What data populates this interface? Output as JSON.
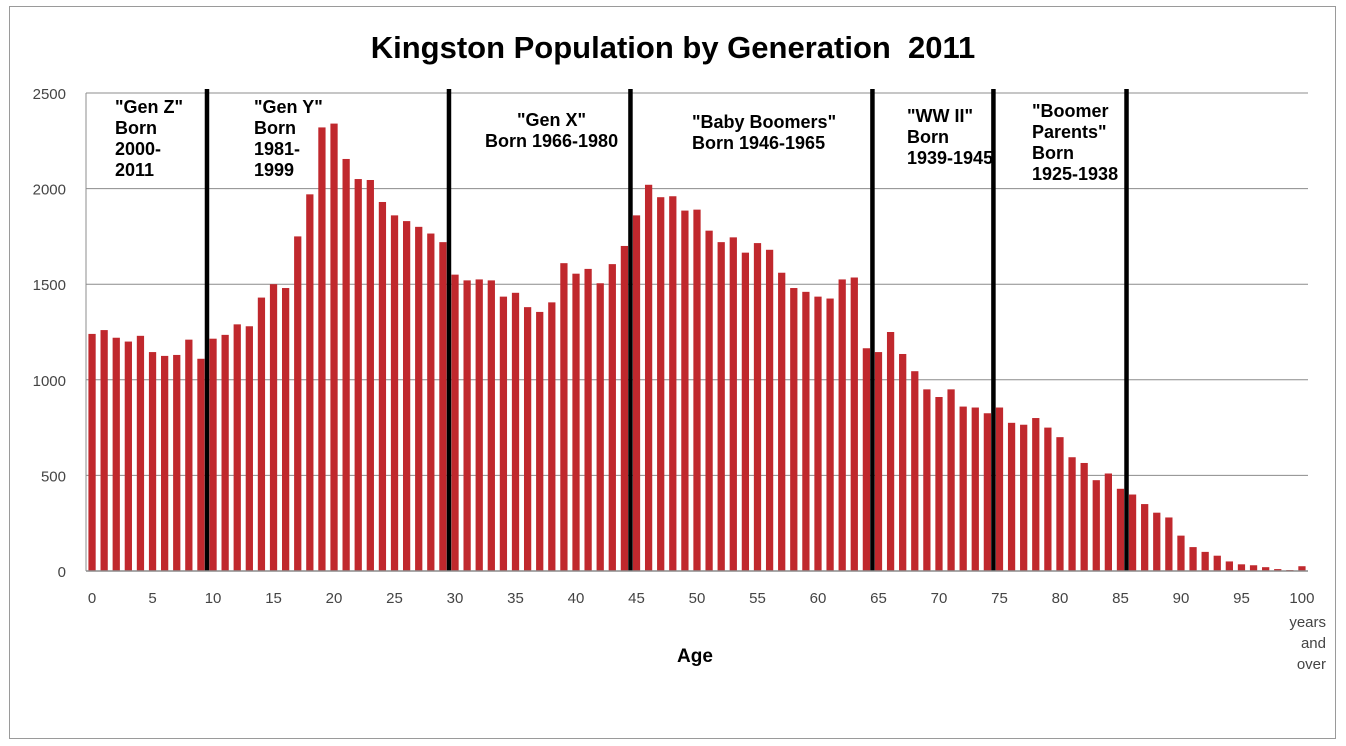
{
  "chart_data": {
    "type": "bar",
    "title": "Kingston Population by Generation  2011",
    "xlabel": "Age",
    "ylabel": "",
    "ylim": [
      0,
      2500
    ],
    "yticks": [
      0,
      500,
      1000,
      1500,
      2000,
      2500
    ],
    "xticks": [
      0,
      5,
      10,
      15,
      20,
      25,
      30,
      35,
      40,
      45,
      50,
      55,
      60,
      65,
      70,
      75,
      80,
      85,
      90,
      95,
      100
    ],
    "x_last_tick_suffix": "years\nand\nover",
    "grid": "horizontal",
    "legend": "none",
    "bar_color": "#c0282d",
    "x": [
      0,
      1,
      2,
      3,
      4,
      5,
      6,
      7,
      8,
      9,
      10,
      11,
      12,
      13,
      14,
      15,
      16,
      17,
      18,
      19,
      20,
      21,
      22,
      23,
      24,
      25,
      26,
      27,
      28,
      29,
      30,
      31,
      32,
      33,
      34,
      35,
      36,
      37,
      38,
      39,
      40,
      41,
      42,
      43,
      44,
      45,
      46,
      47,
      48,
      49,
      50,
      51,
      52,
      53,
      54,
      55,
      56,
      57,
      58,
      59,
      60,
      61,
      62,
      63,
      64,
      65,
      66,
      67,
      68,
      69,
      70,
      71,
      72,
      73,
      74,
      75,
      76,
      77,
      78,
      79,
      80,
      81,
      82,
      83,
      84,
      85,
      86,
      87,
      88,
      89,
      90,
      91,
      92,
      93,
      94,
      95,
      96,
      97,
      98,
      99,
      100
    ],
    "values": [
      1240,
      1260,
      1220,
      1200,
      1230,
      1145,
      1125,
      1130,
      1210,
      1110,
      1215,
      1235,
      1290,
      1280,
      1430,
      1500,
      1480,
      1750,
      1970,
      2320,
      2340,
      2155,
      2050,
      2045,
      1930,
      1860,
      1830,
      1800,
      1765,
      1720,
      1550,
      1520,
      1525,
      1520,
      1435,
      1455,
      1380,
      1355,
      1405,
      1610,
      1555,
      1580,
      1505,
      1605,
      1700,
      1860,
      2020,
      1955,
      1960,
      1885,
      1890,
      1780,
      1720,
      1745,
      1665,
      1715,
      1680,
      1560,
      1480,
      1460,
      1435,
      1425,
      1525,
      1535,
      1165,
      1145,
      1250,
      1135,
      1045,
      950,
      910,
      950,
      860,
      855,
      825,
      855,
      775,
      765,
      800,
      750,
      700,
      595,
      565,
      475,
      510,
      430,
      400,
      350,
      305,
      280,
      185,
      125,
      100,
      80,
      50,
      35,
      30,
      20,
      10,
      5,
      25
    ],
    "dividers": [
      {
        "after_age": 10,
        "label": "\"Gen Z\"\nBorn\n2000-\n2011"
      },
      {
        "after_age": 30,
        "label": "\"Gen Y\"\nBorn\n1981-\n1999"
      },
      {
        "after_age": 45,
        "label": "\"Gen X\"\nBorn 1966-1980"
      },
      {
        "after_age": 65,
        "label": "\"Baby Boomers\"\nBorn 1946-1965"
      },
      {
        "after_age": 75,
        "label": "\"WW II\"\nBorn\n1939-1945"
      },
      {
        "after_age": 86,
        "label": "\"Boomer\nParents\"\nBorn\n1925-1938"
      }
    ]
  }
}
